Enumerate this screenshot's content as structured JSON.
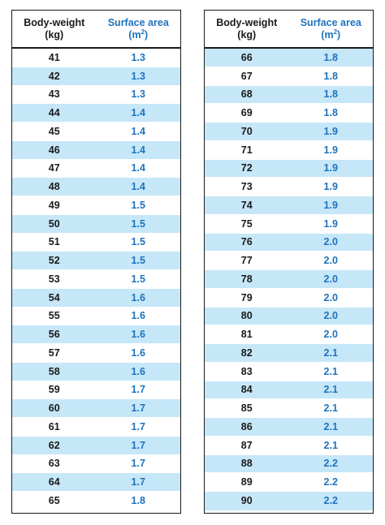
{
  "headers": {
    "weight_line1": "Body-weight",
    "weight_line2": "(kg)",
    "area_line1": "Surface area",
    "area_line2": "(m",
    "area_sup": "2",
    "area_close": ")"
  },
  "colors": {
    "accent_blue": "#1e73be",
    "row_shade": "#c6e7f8",
    "border": "#1a1a1a"
  },
  "left_rows": [
    {
      "weight": "41",
      "area": "1.3"
    },
    {
      "weight": "42",
      "area": "1.3"
    },
    {
      "weight": "43",
      "area": "1.3"
    },
    {
      "weight": "44",
      "area": "1.4"
    },
    {
      "weight": "45",
      "area": "1.4"
    },
    {
      "weight": "46",
      "area": "1.4"
    },
    {
      "weight": "47",
      "area": "1.4"
    },
    {
      "weight": "48",
      "area": "1.4"
    },
    {
      "weight": "49",
      "area": "1.5"
    },
    {
      "weight": "50",
      "area": "1.5"
    },
    {
      "weight": "51",
      "area": "1.5"
    },
    {
      "weight": "52",
      "area": "1.5"
    },
    {
      "weight": "53",
      "area": "1.5"
    },
    {
      "weight": "54",
      "area": "1.6"
    },
    {
      "weight": "55",
      "area": "1.6"
    },
    {
      "weight": "56",
      "area": "1.6"
    },
    {
      "weight": "57",
      "area": "1.6"
    },
    {
      "weight": "58",
      "area": "1.6"
    },
    {
      "weight": "59",
      "area": "1.7"
    },
    {
      "weight": "60",
      "area": "1.7"
    },
    {
      "weight": "61",
      "area": "1.7"
    },
    {
      "weight": "62",
      "area": "1.7"
    },
    {
      "weight": "63",
      "area": "1.7"
    },
    {
      "weight": "64",
      "area": "1.7"
    },
    {
      "weight": "65",
      "area": "1.8"
    }
  ],
  "right_rows": [
    {
      "weight": "66",
      "area": "1.8"
    },
    {
      "weight": "67",
      "area": "1.8"
    },
    {
      "weight": "68",
      "area": "1.8"
    },
    {
      "weight": "69",
      "area": "1.8"
    },
    {
      "weight": "70",
      "area": "1.9"
    },
    {
      "weight": "71",
      "area": "1.9"
    },
    {
      "weight": "72",
      "area": "1.9"
    },
    {
      "weight": "73",
      "area": "1.9"
    },
    {
      "weight": "74",
      "area": "1.9"
    },
    {
      "weight": "75",
      "area": "1.9"
    },
    {
      "weight": "76",
      "area": "2.0"
    },
    {
      "weight": "77",
      "area": "2.0"
    },
    {
      "weight": "78",
      "area": "2.0"
    },
    {
      "weight": "79",
      "area": "2.0"
    },
    {
      "weight": "80",
      "area": "2.0"
    },
    {
      "weight": "81",
      "area": "2.0"
    },
    {
      "weight": "82",
      "area": "2.1"
    },
    {
      "weight": "83",
      "area": "2.1"
    },
    {
      "weight": "84",
      "area": "2.1"
    },
    {
      "weight": "85",
      "area": "2.1"
    },
    {
      "weight": "86",
      "area": "2.1"
    },
    {
      "weight": "87",
      "area": "2.1"
    },
    {
      "weight": "88",
      "area": "2.2"
    },
    {
      "weight": "89",
      "area": "2.2"
    },
    {
      "weight": "90",
      "area": "2.2"
    }
  ]
}
